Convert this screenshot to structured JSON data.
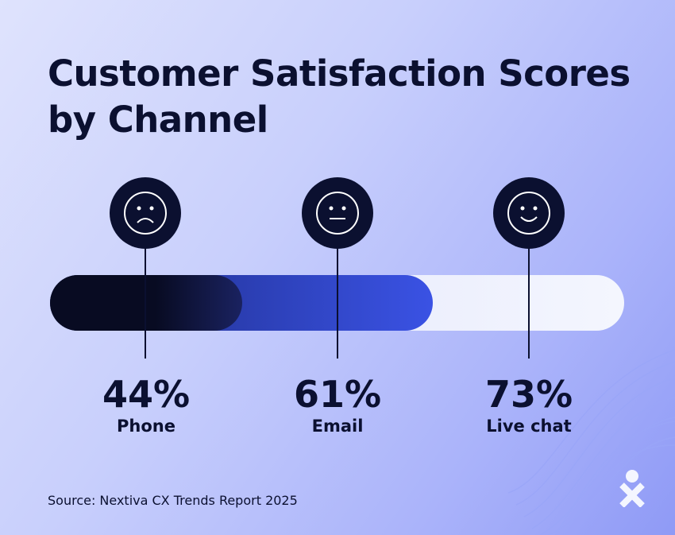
{
  "title": "Customer Satisfaction Scores by Channel",
  "title_lines": [
    "Customer Satisfaction Scores",
    "by Channel"
  ],
  "source": "Source: Nextiva CX Trends Report 2025",
  "logo": "Nextiva",
  "colors": {
    "phone": "#0a0e2a",
    "email": "#3a52e4",
    "live_chat": "#eef0fd",
    "background": "#c8cffc"
  },
  "chart_data": {
    "type": "bar",
    "title": "Customer Satisfaction Scores by Channel",
    "categories": [
      "Phone",
      "Email",
      "Live chat"
    ],
    "values": [
      44,
      61,
      73
    ],
    "value_labels": [
      "44%",
      "61%",
      "73%"
    ],
    "icons": [
      "sad-face-icon",
      "neutral-face-icon",
      "smiley-face-icon"
    ],
    "orientation": "horizontal-stacked-overlay"
  }
}
